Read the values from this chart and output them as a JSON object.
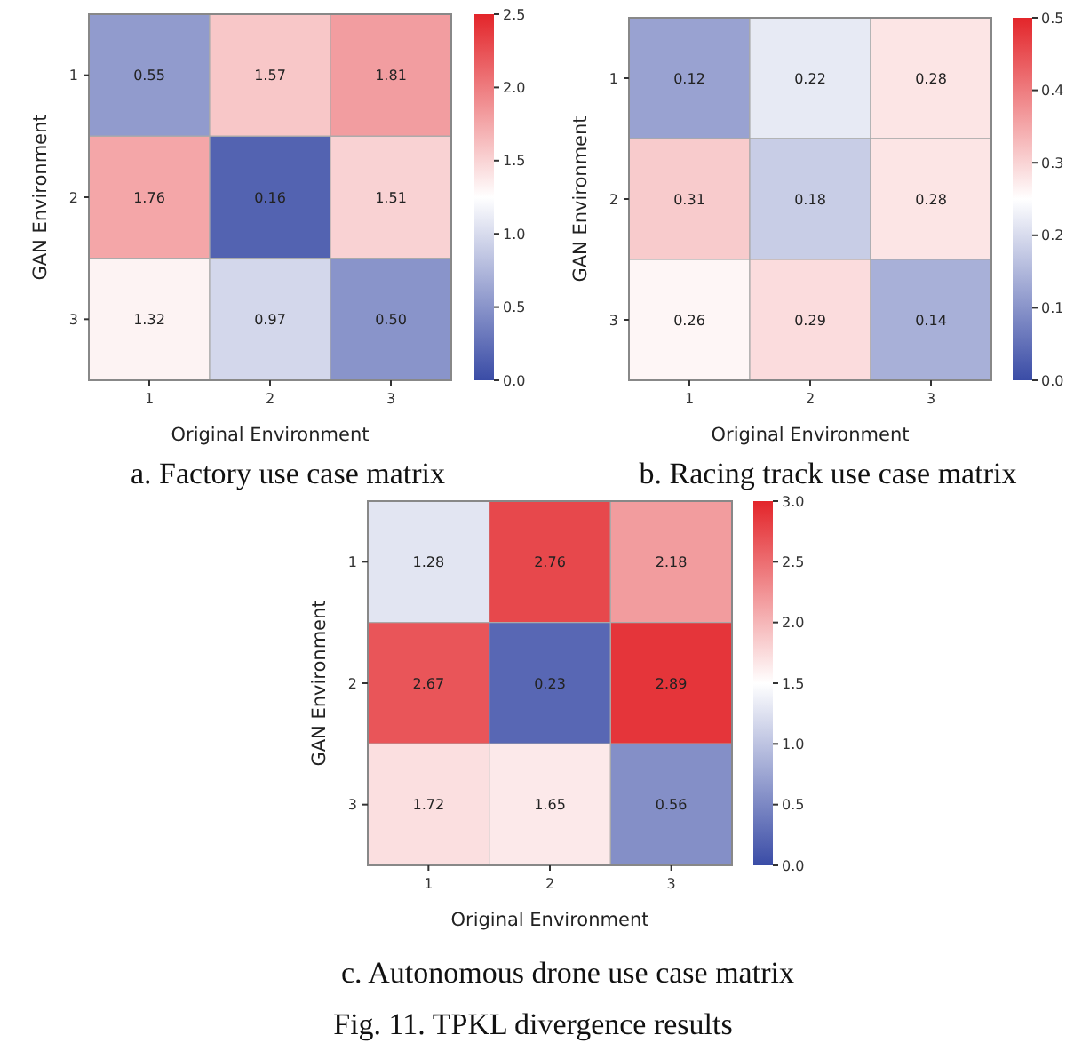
{
  "chart_data": [
    {
      "type": "heatmap",
      "title": "a. Factory use case matrix",
      "xlabel": "Original Environment",
      "ylabel": "GAN Environment",
      "categories": [
        "1",
        "2",
        "3"
      ],
      "y_categories": [
        "1",
        "2",
        "3"
      ],
      "cells": [
        [
          0.55,
          1.57,
          1.81
        ],
        [
          1.76,
          0.16,
          1.51
        ],
        [
          1.32,
          0.97,
          0.5
        ]
      ],
      "cell_labels": [
        [
          "0.55",
          "1.57",
          "1.81"
        ],
        [
          "1.76",
          "0.16",
          "1.51"
        ],
        [
          "1.32",
          "0.97",
          "0.50"
        ]
      ],
      "clim": [
        0,
        2.5
      ],
      "cticks": [
        {
          "value": 0,
          "label": "0.0"
        },
        {
          "value": 0.5,
          "label": "0.5"
        },
        {
          "value": 1,
          "label": "1.0"
        },
        {
          "value": 1.5,
          "label": "1.5"
        },
        {
          "value": 2,
          "label": "2.0"
        },
        {
          "value": 2.5,
          "label": "2.5"
        }
      ]
    },
    {
      "type": "heatmap",
      "title": "b. Racing track use case matrix",
      "xlabel": "Original Environment",
      "ylabel": "GAN Environment",
      "categories": [
        "1",
        "2",
        "3"
      ],
      "y_categories": [
        "1",
        "2",
        "3"
      ],
      "cells": [
        [
          0.12,
          0.22,
          0.28
        ],
        [
          0.31,
          0.18,
          0.28
        ],
        [
          0.26,
          0.29,
          0.14
        ]
      ],
      "data_labels": true,
      "clim": [
        0,
        0.5
      ],
      "cticks": [
        {
          "value": 0,
          "label": "0.0"
        },
        0.1,
        0.2,
        0.3,
        0.4,
        0.5
      ]
    },
    {
      "type": "heatmap",
      "title": "c. Autonomous drone use case matrix",
      "xlabel": "Original Environment",
      "ylabel": "GAN Environment",
      "categories": [
        "1",
        "2",
        "3"
      ],
      "y_categories": [
        "1",
        "2",
        "3"
      ],
      "cells": [
        [
          1.28,
          2.76,
          2.18
        ],
        [
          2.67,
          0.23,
          2.89
        ],
        [
          1.72,
          1.65,
          0.56
        ]
      ],
      "data_labels": true,
      "clim": [
        0,
        3.0
      ],
      "cticks": [
        {
          "value": 0,
          "label": "0.0"
        },
        0.5,
        {
          "value": 1,
          "label": "1.0"
        },
        1.5,
        {
          "value": 2,
          "label": "2.0"
        },
        2.5,
        {
          "value": 3,
          "label": "3.0"
        }
      ],
      "annotations": [
        "Fig. 11. TPKL divergence results"
      ]
    }
  ]
}
